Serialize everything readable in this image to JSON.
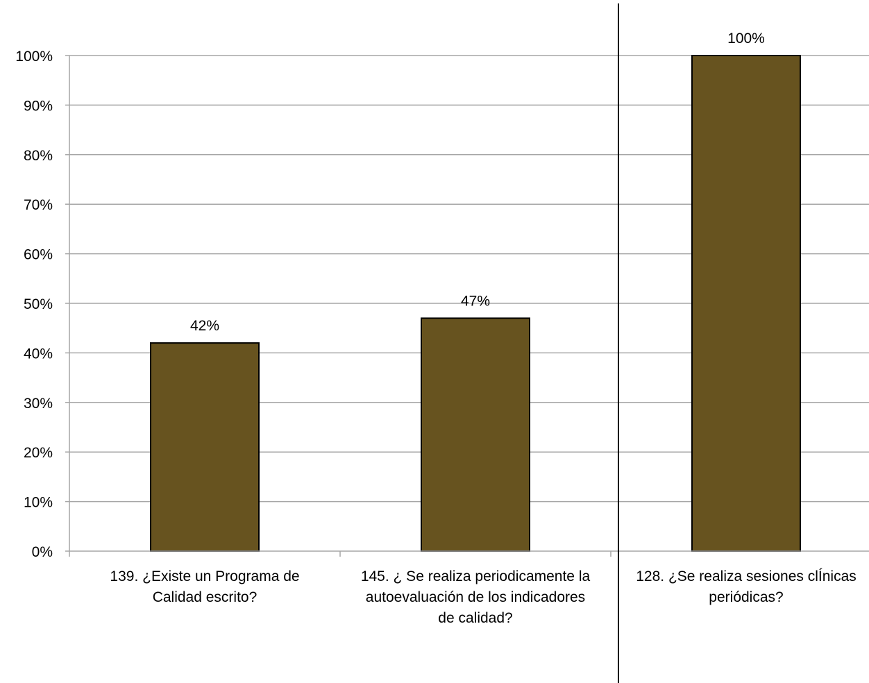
{
  "chart_data": {
    "type": "bar",
    "categories": [
      [
        "139. ¿Existe un Programa de",
        "Calidad escrito?"
      ],
      [
        "145. ¿ Se realiza periodicamente la",
        "autoevaluación de los indicadores",
        "de calidad?"
      ],
      [
        "128. ¿Se realiza sesiones clÍnicas",
        "periódicas?"
      ]
    ],
    "values": [
      42,
      47,
      100
    ],
    "data_labels": [
      "42%",
      "47%",
      "100%"
    ],
    "ylim": [
      0,
      100
    ],
    "yticks": [
      0,
      10,
      20,
      30,
      40,
      50,
      60,
      70,
      80,
      90,
      100
    ],
    "ytick_labels": [
      "0%",
      "10%",
      "20%",
      "30%",
      "40%",
      "50%",
      "60%",
      "70%",
      "80%",
      "90%",
      "100%"
    ],
    "grid": true,
    "bar_color": "#67531F",
    "bar_edge_color": "#000000",
    "grid_color": "#A6A6A6",
    "divider_color": "#000000"
  }
}
